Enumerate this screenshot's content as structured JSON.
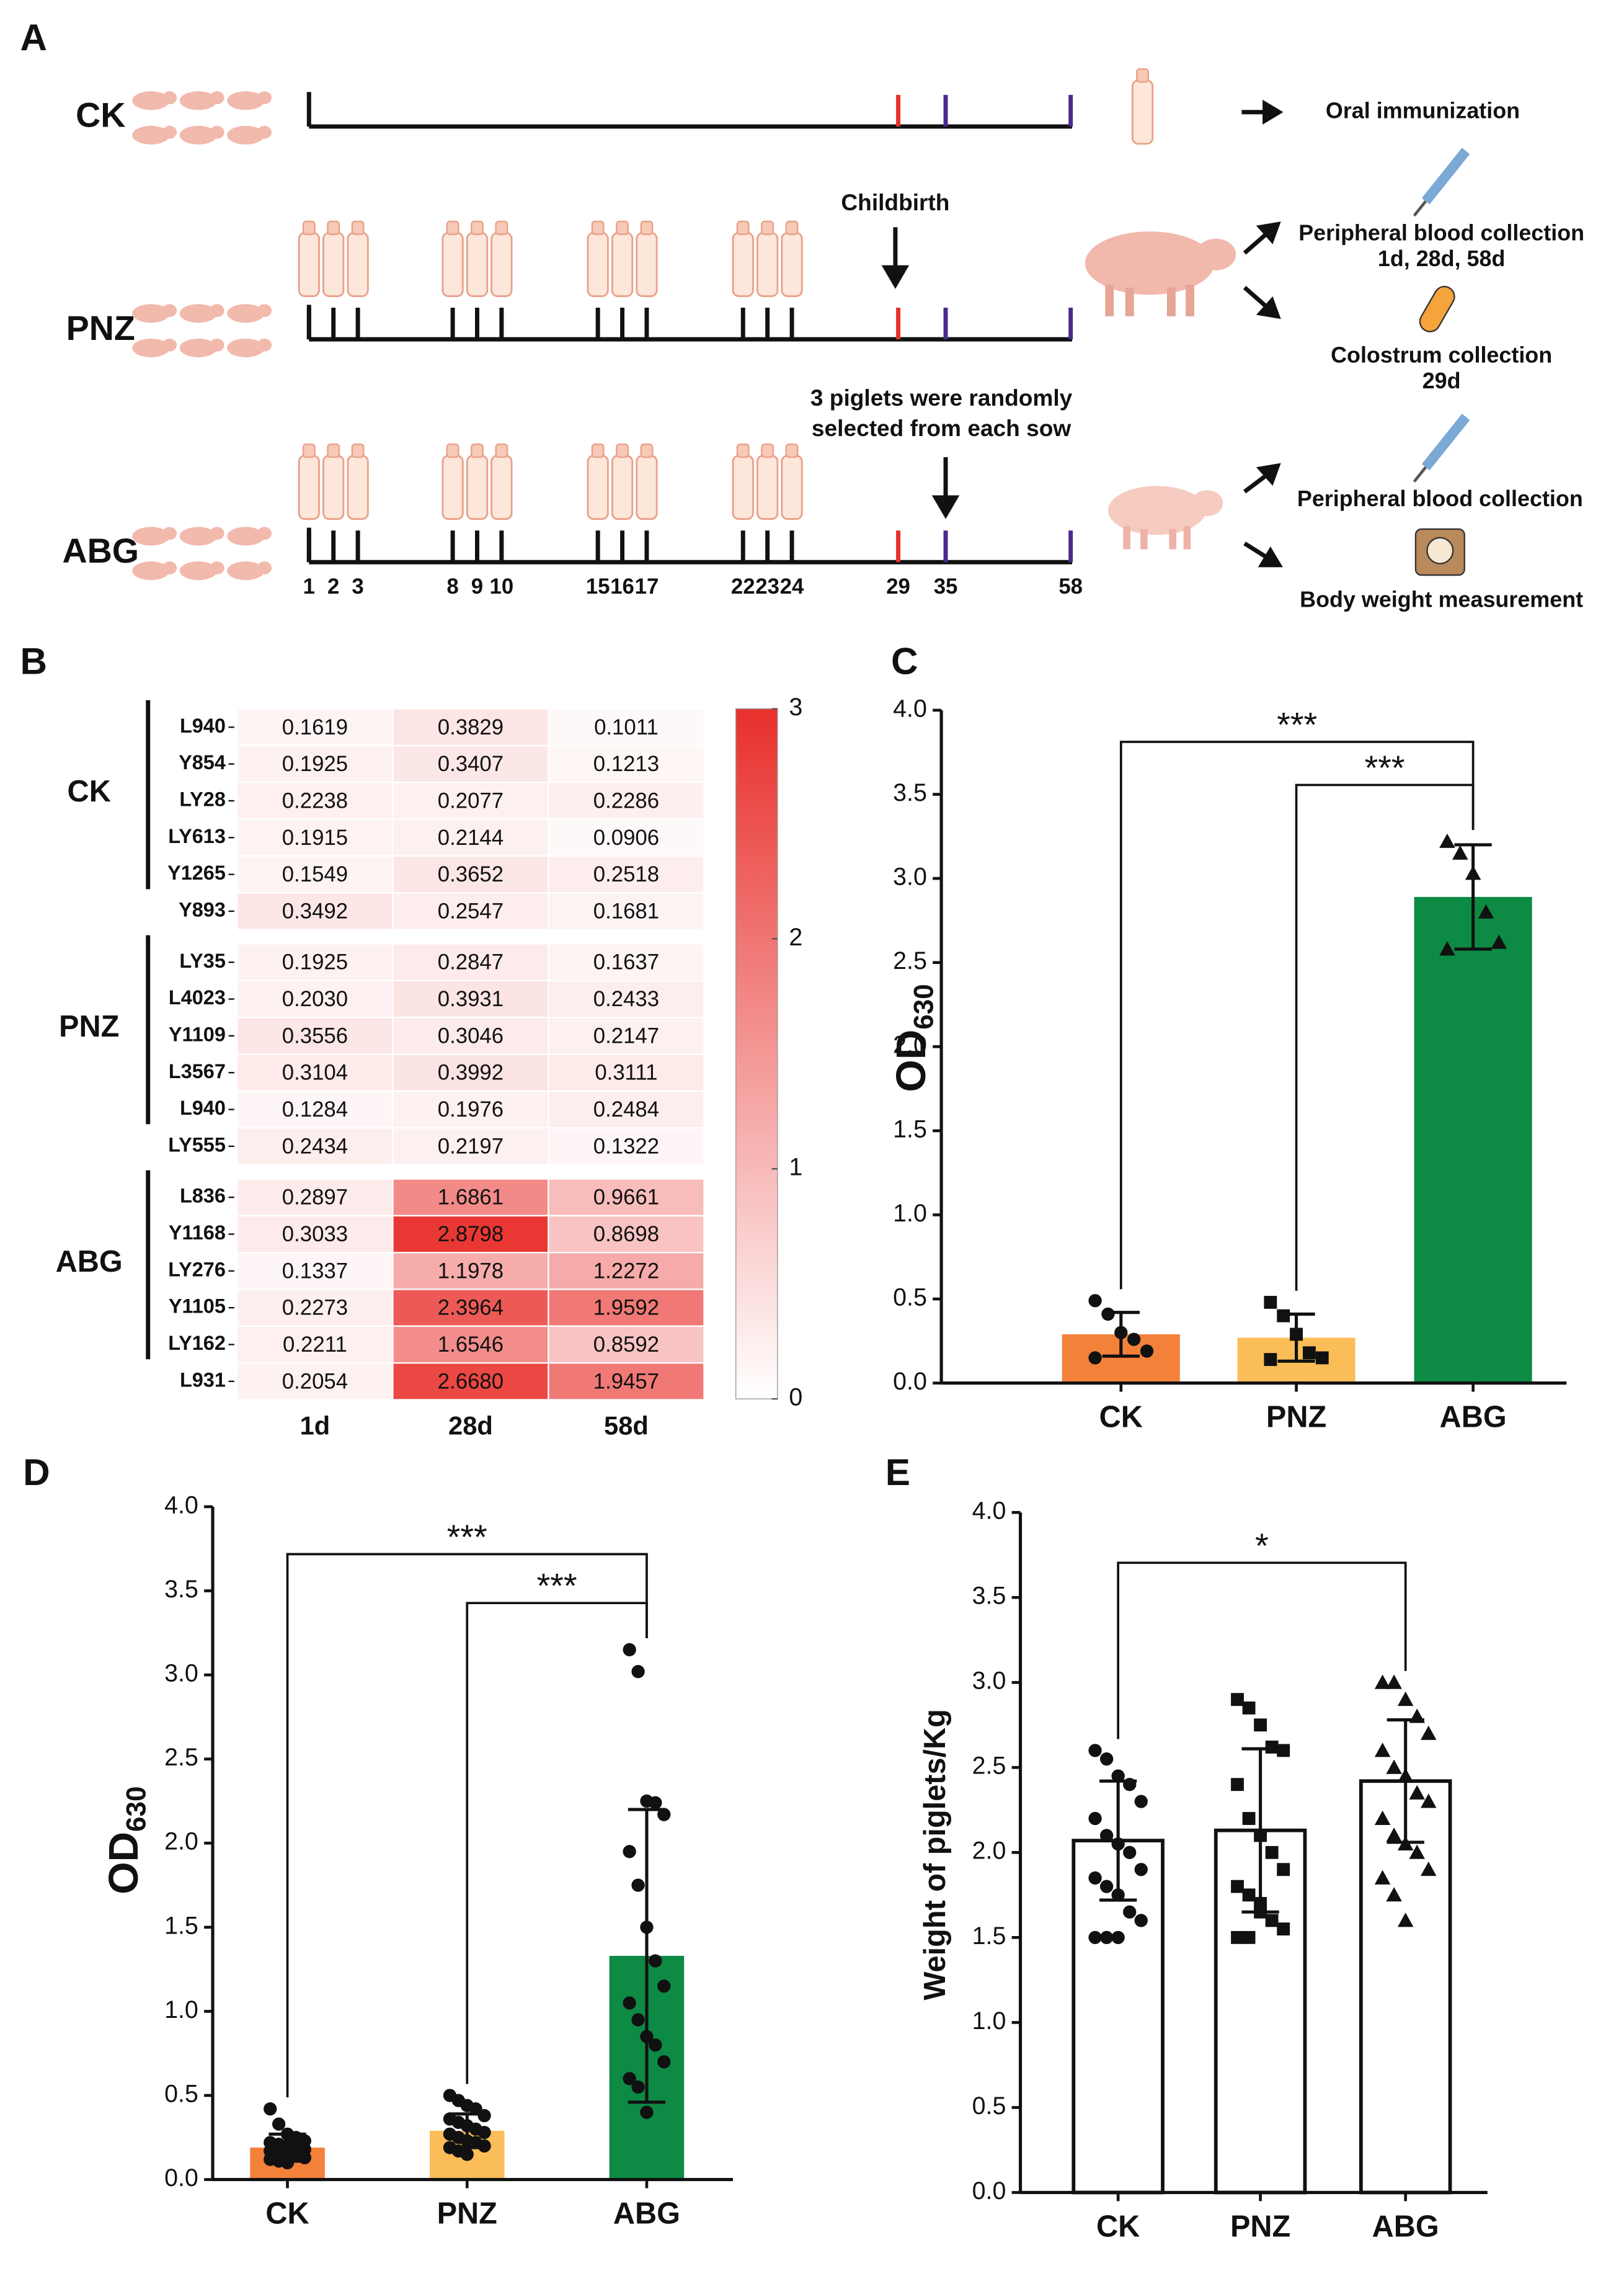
{
  "diagram": {
    "panel": "A",
    "groups": [
      "CK",
      "PNZ",
      "ABG"
    ],
    "days": [
      "1",
      "2",
      "3",
      "8",
      "9",
      "10",
      "15",
      "16",
      "17",
      "22",
      "23",
      "24",
      "29",
      "35",
      "58"
    ],
    "childbirth": "Childbirth",
    "selection": [
      "3 piglets were randomly",
      "selected from each sow"
    ],
    "steps": [
      [
        "Oral immunization"
      ],
      [
        "Peripheral blood collection",
        "1d, 28d, 58d"
      ],
      [
        "Colostrum collection",
        "29d"
      ],
      [
        "Peripheral blood collection"
      ],
      [
        "Body weight measurement"
      ]
    ]
  },
  "chart_data": [
    {
      "type": "heatmap",
      "panel": "B",
      "columns": [
        "1d",
        "28d",
        "58d"
      ],
      "clim": [
        0,
        3
      ],
      "cticks": [
        0,
        1,
        2,
        3
      ],
      "colors": [
        "#ffffff",
        "#e8302c"
      ],
      "groups": [
        {
          "name": "CK",
          "rows": [
            "L940",
            "Y854",
            "LY28",
            "LY613",
            "Y1265",
            "Y893"
          ],
          "values": [
            [
              0.1619,
              0.3829,
              0.1011
            ],
            [
              0.1925,
              0.3407,
              0.1213
            ],
            [
              0.2238,
              0.2077,
              0.2286
            ],
            [
              0.1915,
              0.2144,
              0.0906
            ],
            [
              0.1549,
              0.3652,
              0.2518
            ],
            [
              0.3492,
              0.2547,
              0.1681
            ]
          ],
          "value_labels": [
            [
              "0.1619",
              "0.3829",
              "0.1011"
            ],
            [
              "0.1925",
              "0.3407",
              "0.1213"
            ],
            [
              "0.2238",
              "0.2077",
              "0.2286"
            ],
            [
              "0.1915",
              "0.2144",
              "0.0906"
            ],
            [
              "0.1549",
              "0.3652",
              "0.2518"
            ],
            [
              "0.3492",
              "0.2547",
              "0.1681"
            ]
          ]
        },
        {
          "name": "PNZ",
          "rows": [
            "LY35",
            "L4023",
            "Y1109",
            "L3567",
            "L940",
            "LY555"
          ],
          "values": [
            [
              0.1925,
              0.2847,
              0.1637
            ],
            [
              0.203,
              0.3931,
              0.2433
            ],
            [
              0.3556,
              0.3046,
              0.2147
            ],
            [
              0.3104,
              0.3992,
              0.3111
            ],
            [
              0.1284,
              0.1976,
              0.2484
            ],
            [
              0.2434,
              0.2197,
              0.1322
            ]
          ],
          "value_labels": [
            [
              "0.1925",
              "0.2847",
              "0.1637"
            ],
            [
              "0.2030",
              "0.3931",
              "0.2433"
            ],
            [
              "0.3556",
              "0.3046",
              "0.2147"
            ],
            [
              "0.3104",
              "0.3992",
              "0.3111"
            ],
            [
              "0.1284",
              "0.1976",
              "0.2484"
            ],
            [
              "0.2434",
              "0.2197",
              "0.1322"
            ]
          ]
        },
        {
          "name": "ABG",
          "rows": [
            "L836",
            "Y1168",
            "LY276",
            "Y1105",
            "LY162",
            "L931"
          ],
          "values": [
            [
              0.2897,
              1.6861,
              0.9661
            ],
            [
              0.3033,
              2.8798,
              0.8698
            ],
            [
              0.1337,
              1.1978,
              1.2272
            ],
            [
              0.2273,
              2.3964,
              1.9592
            ],
            [
              0.2211,
              1.6546,
              0.8592
            ],
            [
              0.2054,
              2.668,
              1.9457
            ]
          ],
          "value_labels": [
            [
              "0.2897",
              "1.6861",
              "0.9661"
            ],
            [
              "0.3033",
              "2.8798",
              "0.8698"
            ],
            [
              "0.1337",
              "1.1978",
              "1.2272"
            ],
            [
              "0.2273",
              "2.3964",
              "1.9592"
            ],
            [
              "0.2211",
              "1.6546",
              "0.8592"
            ],
            [
              "0.2054",
              "2.6680",
              "1.9457"
            ]
          ]
        }
      ]
    },
    {
      "type": "bar",
      "panel": "C",
      "ylabel": "OD",
      "ylabel_sub": "630",
      "categories": [
        "CK",
        "PNZ",
        "ABG"
      ],
      "colors": [
        "#f4813a",
        "#fbbd58",
        "#0d8a44"
      ],
      "markers": [
        "circle",
        "square",
        "triangle"
      ],
      "values": [
        0.29,
        0.27,
        2.89
      ],
      "errors": [
        0.13,
        0.14,
        0.31
      ],
      "points": [
        [
          0.49,
          0.41,
          0.3,
          0.26,
          0.19,
          0.15
        ],
        [
          0.48,
          0.4,
          0.29,
          0.18,
          0.15,
          0.14
        ],
        [
          3.22,
          3.15,
          3.03,
          2.8,
          2.62,
          2.58
        ]
      ],
      "ylim": [
        0,
        4
      ],
      "yticks": [
        {
          "value": 0,
          "label": "0.0"
        },
        0.5,
        {
          "value": 1,
          "label": "1.0"
        },
        1.5,
        {
          "value": 2,
          "label": "2.0"
        },
        2.5,
        {
          "value": 3,
          "label": "3.0"
        },
        3.5,
        {
          "value": 4,
          "label": "4.0"
        }
      ],
      "comparisons": [
        {
          "label": "***",
          "groups": [
            "CK",
            "ABG"
          ]
        },
        {
          "label": "***",
          "groups": [
            "PNZ",
            "ABG"
          ]
        }
      ]
    },
    {
      "type": "bar",
      "panel": "D",
      "ylabel": "OD",
      "ylabel_sub": "630",
      "categories": [
        "CK",
        "PNZ",
        "ABG"
      ],
      "colors": [
        "#f4813a",
        "#fbbd58",
        "#0d8a44"
      ],
      "markers": [
        "circle",
        "circle",
        "circle"
      ],
      "values": [
        0.19,
        0.29,
        1.33
      ],
      "errors": [
        0.08,
        0.1,
        0.87
      ],
      "points": [
        [
          0.42,
          0.33,
          0.27,
          0.25,
          0.23,
          0.22,
          0.21,
          0.2,
          0.19,
          0.18,
          0.17,
          0.16,
          0.15,
          0.14,
          0.13,
          0.12,
          0.11,
          0.1
        ],
        [
          0.5,
          0.47,
          0.44,
          0.42,
          0.38,
          0.36,
          0.34,
          0.32,
          0.3,
          0.28,
          0.27,
          0.25,
          0.23,
          0.22,
          0.2,
          0.19,
          0.17,
          0.15
        ],
        [
          3.15,
          3.02,
          2.25,
          2.24,
          2.17,
          1.95,
          1.75,
          1.5,
          1.3,
          1.15,
          1.05,
          0.95,
          0.85,
          0.8,
          0.7,
          0.6,
          0.55,
          0.4
        ]
      ],
      "ylim": [
        0,
        4
      ],
      "yticks": [
        {
          "value": 0,
          "label": "0.0"
        },
        0.5,
        {
          "value": 1,
          "label": "1.0"
        },
        1.5,
        {
          "value": 2,
          "label": "2.0"
        },
        2.5,
        {
          "value": 3,
          "label": "3.0"
        },
        3.5,
        {
          "value": 4,
          "label": "4.0"
        }
      ],
      "comparisons": [
        {
          "label": "***",
          "groups": [
            "CK",
            "ABG"
          ]
        },
        {
          "label": "***",
          "groups": [
            "PNZ",
            "ABG"
          ]
        }
      ]
    },
    {
      "type": "bar",
      "panel": "E",
      "ylabel": "Weight of piglets/Kg",
      "categories": [
        "CK",
        "PNZ",
        "ABG"
      ],
      "colors": [
        "#ffffff",
        "#ffffff",
        "#ffffff"
      ],
      "markers": [
        "circle",
        "square",
        "triangle"
      ],
      "values": [
        2.07,
        2.13,
        2.42
      ],
      "errors": [
        0.35,
        0.48,
        0.36
      ],
      "points": [
        [
          2.6,
          2.55,
          2.45,
          2.4,
          2.3,
          2.2,
          2.1,
          2.05,
          2.0,
          1.9,
          1.85,
          1.8,
          1.75,
          1.65,
          1.6,
          1.5,
          1.5,
          1.5
        ],
        [
          2.9,
          2.85,
          2.75,
          2.62,
          2.6,
          2.4,
          2.2,
          2.1,
          2.0,
          1.9,
          1.8,
          1.75,
          1.65,
          1.6,
          1.55,
          1.5,
          1.5,
          1.7
        ],
        [
          3.0,
          3.0,
          2.9,
          2.8,
          2.7,
          2.6,
          2.5,
          2.45,
          2.35,
          2.3,
          2.2,
          2.1,
          2.05,
          2.0,
          1.9,
          1.85,
          1.75,
          1.6
        ]
      ],
      "ylim": [
        0,
        4
      ],
      "yticks": [
        {
          "value": 0,
          "label": "0.0"
        },
        0.5,
        {
          "value": 1,
          "label": "1.0"
        },
        1.5,
        {
          "value": 2,
          "label": "2.0"
        },
        2.5,
        {
          "value": 3,
          "label": "3.0"
        },
        3.5,
        {
          "value": 4,
          "label": "4.0"
        }
      ],
      "comparisons": [
        {
          "label": "*",
          "groups": [
            "CK",
            "ABG"
          ]
        }
      ]
    }
  ]
}
